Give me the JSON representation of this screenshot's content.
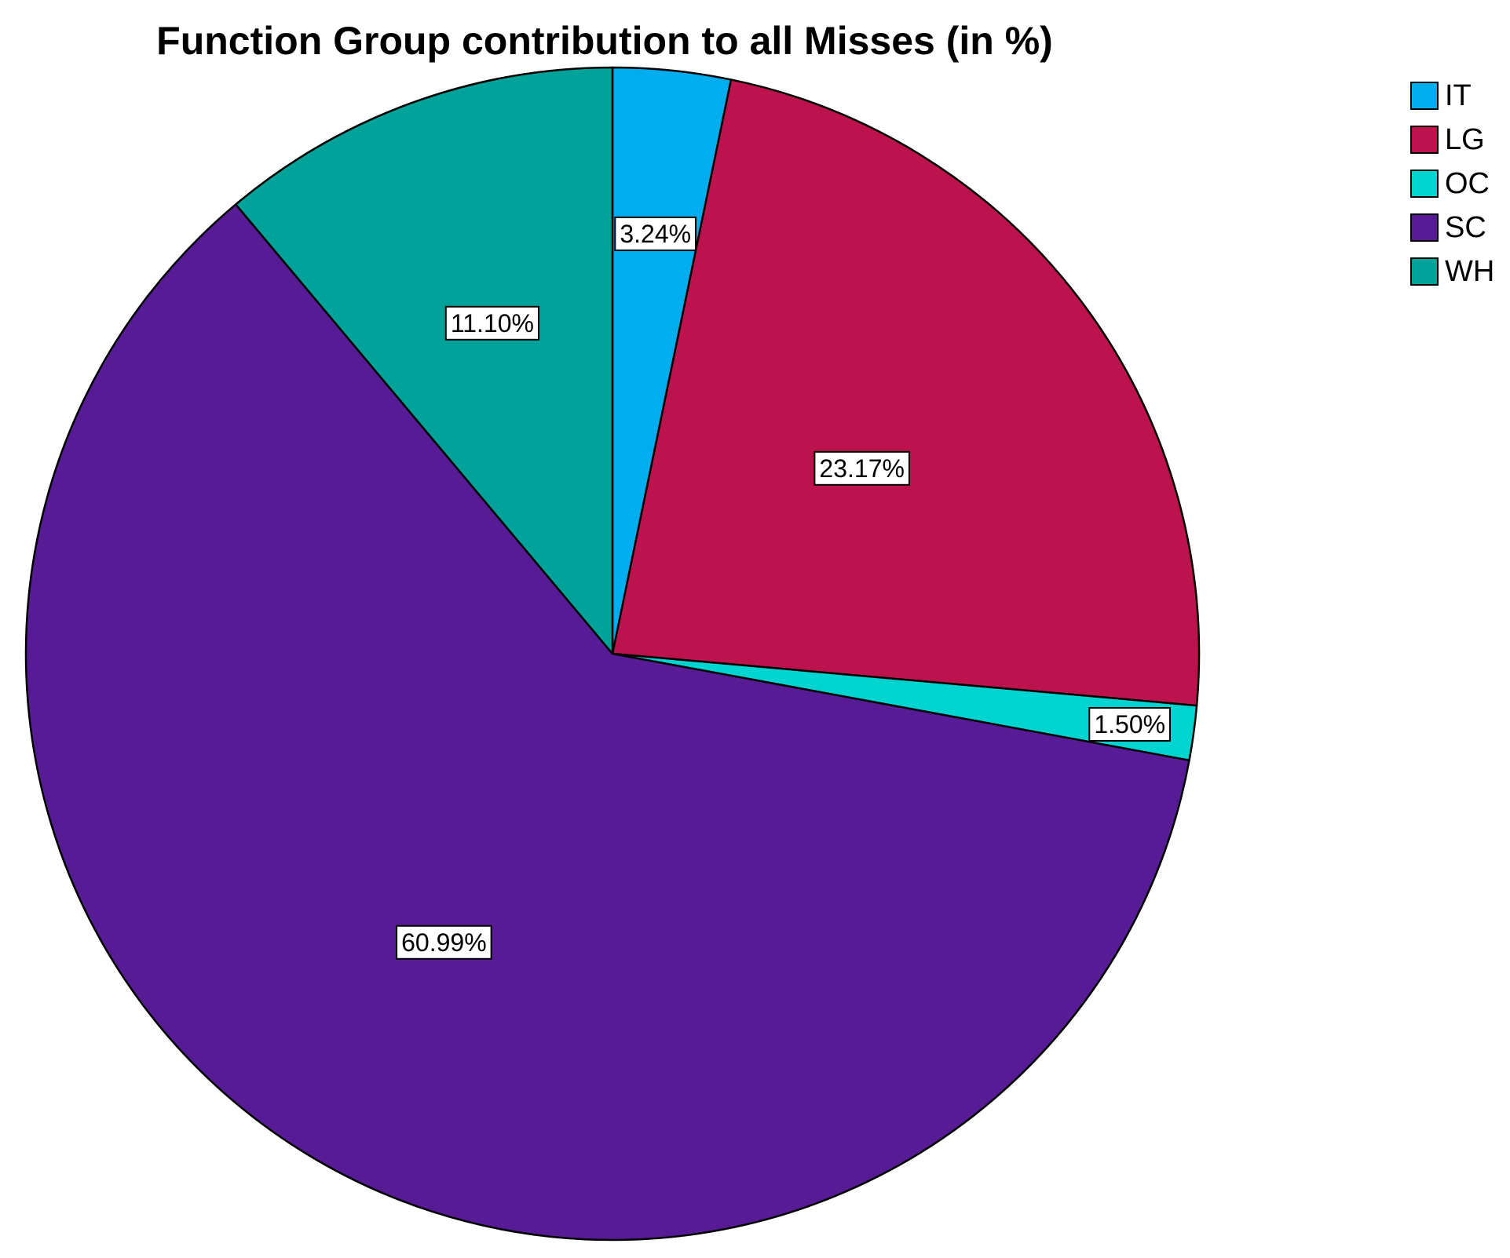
{
  "chart_data": {
    "type": "pie",
    "title": "Function Group contribution to all Misses (in %)",
    "slices": [
      {
        "label": "IT",
        "value": 3.24,
        "data_label": "3.24%",
        "color": "#00AEEF"
      },
      {
        "label": "LG",
        "value": 23.17,
        "data_label": "23.17%",
        "color": "#BC134E"
      },
      {
        "label": "OC",
        "value": 1.5,
        "data_label": "1.50%",
        "color": "#00D4D0"
      },
      {
        "label": "SC",
        "value": 60.99,
        "data_label": "60.99%",
        "color": "#571B96"
      },
      {
        "label": "WH",
        "value": 11.1,
        "data_label": "11.10%",
        "color": "#00A29A"
      }
    ],
    "start_angle": "12 o'clock",
    "direction": "clockwise",
    "legend_position": "top-right",
    "units": "%"
  }
}
